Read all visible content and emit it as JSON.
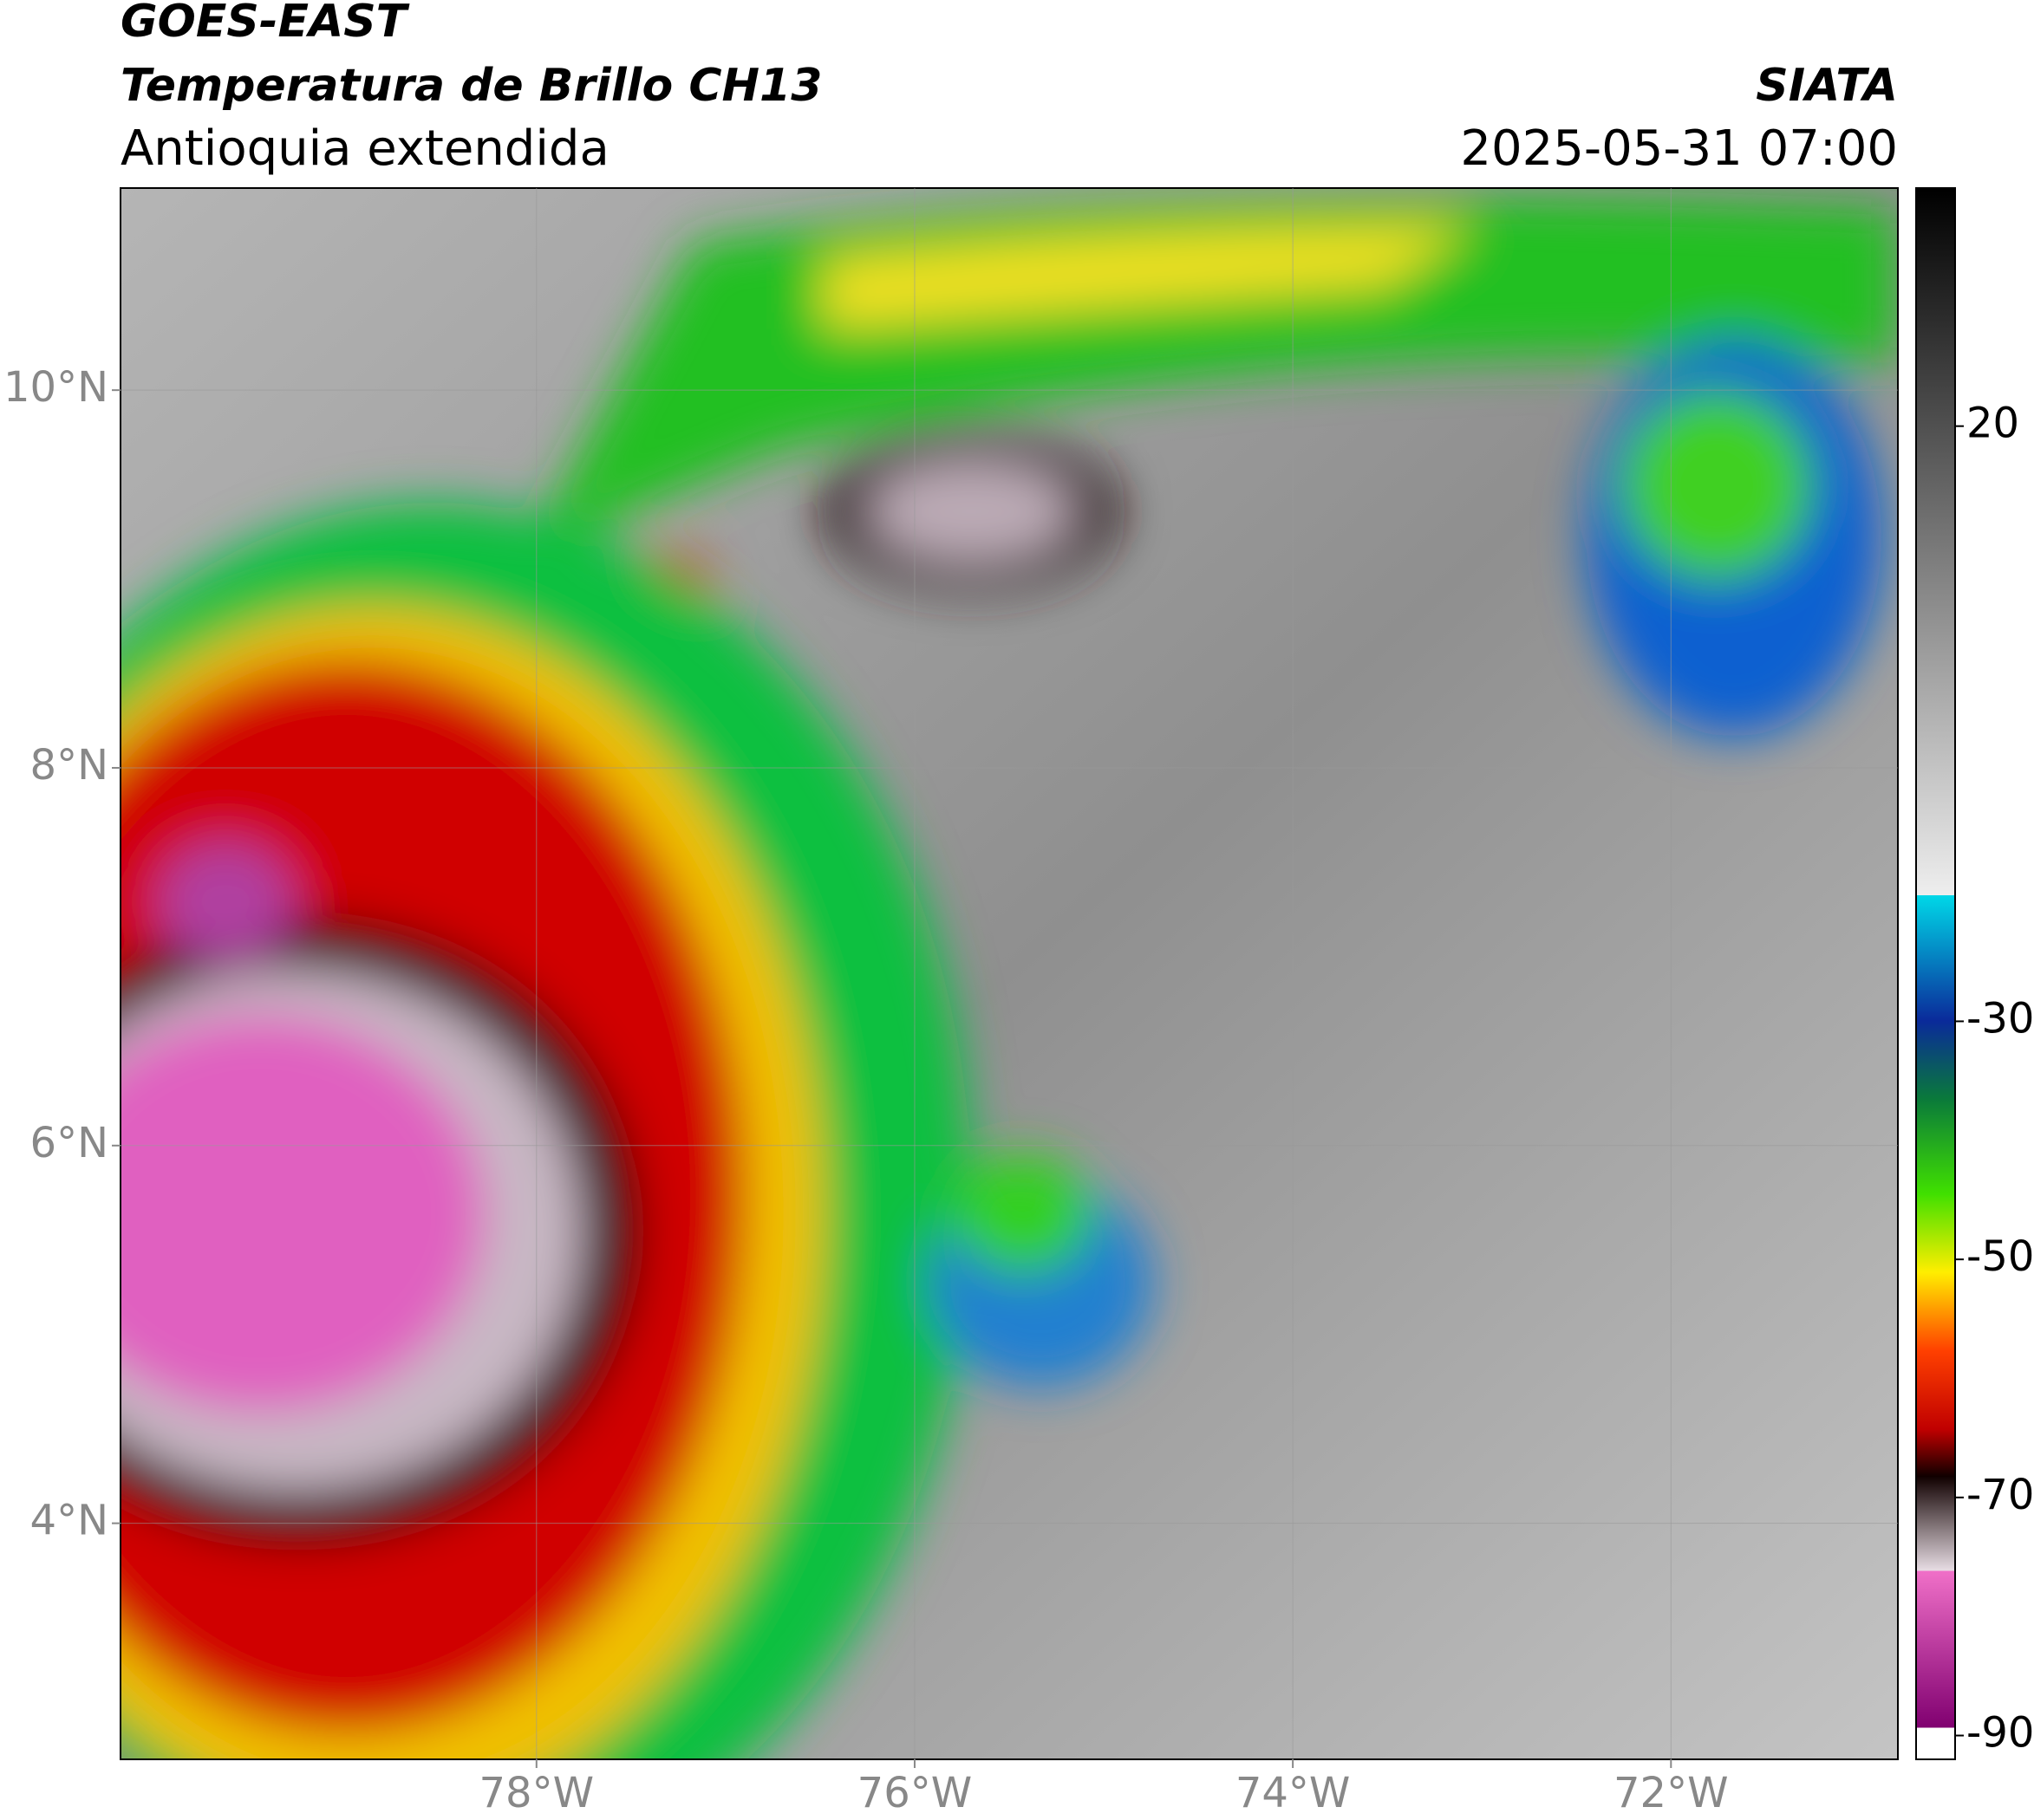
{
  "header": {
    "title": "GOES-EAST",
    "subtitle": "Temperatura de Brillo CH13",
    "region": "Antioquia extendida",
    "source": "SIATA",
    "datetime": "2025-05-31 07:00"
  },
  "map": {
    "xlim": [
      -80.2,
      -70.8
    ],
    "ylim": [
      2.75,
      11.07
    ],
    "xticks": [
      {
        "value": -78,
        "label": "78°W"
      },
      {
        "value": -76,
        "label": "76°W"
      },
      {
        "value": -74,
        "label": "74°W"
      },
      {
        "value": -72,
        "label": "72°W"
      }
    ],
    "yticks": [
      {
        "value": 4,
        "label": "4°N"
      },
      {
        "value": 6,
        "label": "6°N"
      },
      {
        "value": 8,
        "label": "8°N"
      },
      {
        "value": 10,
        "label": "10°N"
      }
    ],
    "grid": true
  },
  "colorbar": {
    "lim": [
      -92,
      40
    ],
    "ticks": [
      20,
      -30,
      -50,
      -70,
      -90
    ]
  }
}
